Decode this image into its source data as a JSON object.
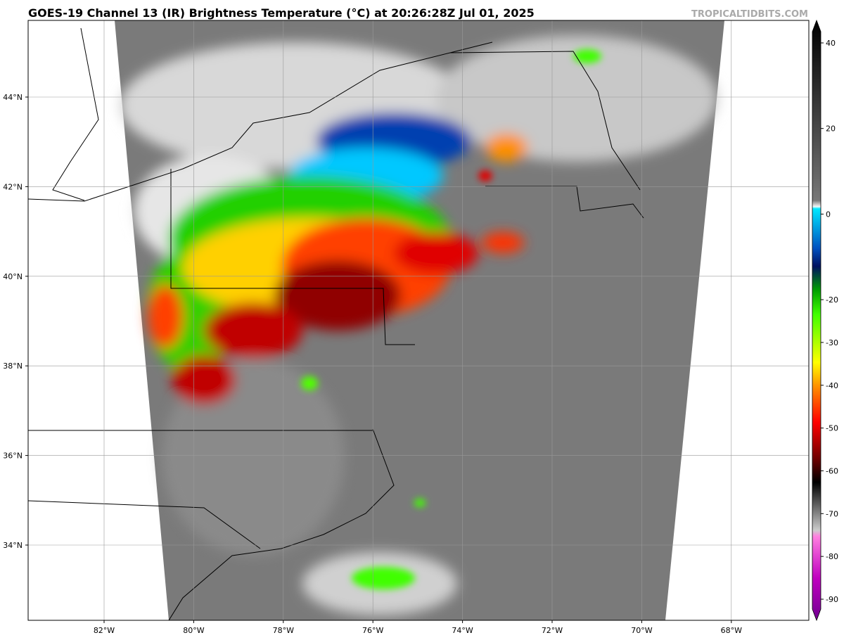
{
  "header": {
    "title": "GOES-19 Channel 13 (IR) Brightness Temperature (°C) at 20:26:28Z Jul 01, 2025",
    "source": "TROPICALTIDBITS.COM"
  },
  "map": {
    "lon_labels": [
      "82°W",
      "80°W",
      "78°W",
      "76°W",
      "74°W",
      "72°W",
      "70°W",
      "68°W"
    ],
    "lat_labels": [
      "44°N",
      "42°N",
      "40°N",
      "38°N",
      "36°N",
      "34°N"
    ]
  },
  "colorbar": {
    "ticks": [
      40,
      20,
      0,
      -20,
      -30,
      -40,
      -50,
      -60,
      -70,
      -80,
      -90
    ]
  }
}
